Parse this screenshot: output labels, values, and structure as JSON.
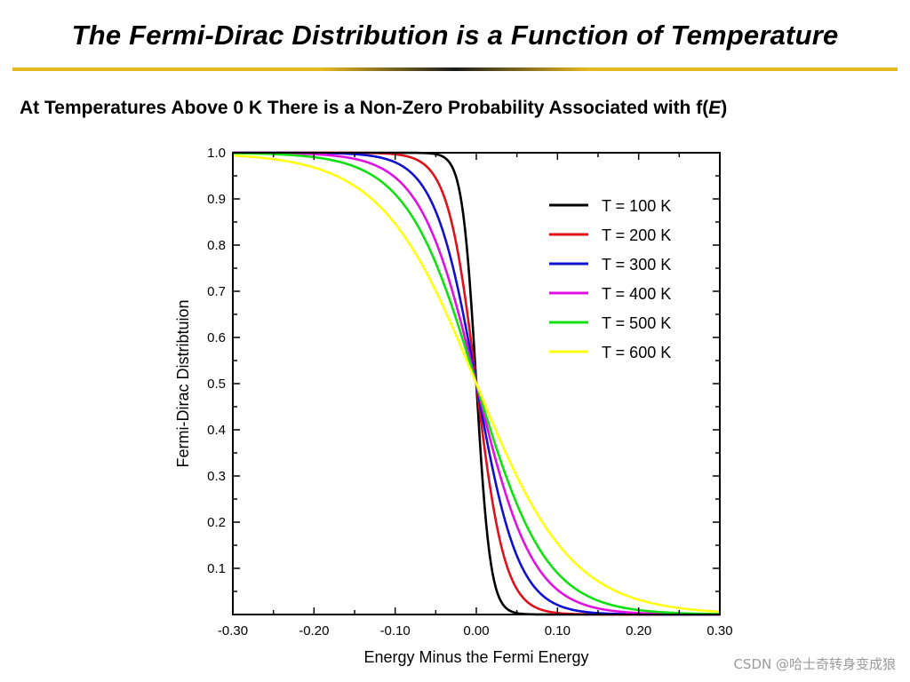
{
  "slide": {
    "title": "The Fermi-Dirac Distribution is a Function of Temperature",
    "subtitle_main": "At Temperatures Above 0 K There is a Non-Zero Probability Associated with f(",
    "subtitle_var": "E",
    "subtitle_end": ")",
    "rule_colors": {
      "gold": "#E8B820",
      "dark": "#1a1a1a"
    },
    "watermark": "CSDN @哈士奇转身变成狼"
  },
  "chart_data": {
    "type": "line",
    "title": "",
    "xlabel": "Energy Minus the Fermi Energy",
    "ylabel": "Fermi-Dirac Distribtuion",
    "xlim": [
      -0.3,
      0.3
    ],
    "ylim": [
      0.0,
      1.0
    ],
    "x_ticks": [
      "-0.30",
      "-0.20",
      "-0.10",
      "0.00",
      "0.10",
      "0.20",
      "0.30"
    ],
    "y_ticks": [
      "0.1",
      "0.2",
      "0.3",
      "0.4",
      "0.5",
      "0.6",
      "0.7",
      "0.8",
      "0.9",
      "1.0"
    ],
    "grid": false,
    "legend_position": "top-right",
    "x": [
      -0.3,
      -0.25,
      -0.2,
      -0.15,
      -0.1,
      -0.05,
      -0.03,
      -0.02,
      -0.01,
      0.0,
      0.01,
      0.02,
      0.03,
      0.05,
      0.1,
      0.15,
      0.2,
      0.25,
      0.3
    ],
    "series": [
      {
        "name": "T = 100 K",
        "color": "#000000",
        "values": [
          1.0,
          1.0,
          1.0,
          1.0,
          1.0,
          0.997,
          0.969,
          0.91,
          0.761,
          0.5,
          0.239,
          0.09,
          0.031,
          0.003,
          0.0,
          0.0,
          0.0,
          0.0,
          0.0
        ]
      },
      {
        "name": "T = 200 K",
        "color": "#E0101A",
        "values": [
          1.0,
          1.0,
          1.0,
          1.0,
          0.997,
          0.945,
          0.85,
          0.761,
          0.64,
          0.5,
          0.36,
          0.239,
          0.15,
          0.055,
          0.003,
          0.0,
          0.0,
          0.0,
          0.0
        ]
      },
      {
        "name": "T = 300 K",
        "color": "#1010D0",
        "values": [
          1.0,
          1.0,
          1.0,
          0.997,
          0.979,
          0.873,
          0.761,
          0.683,
          0.595,
          0.5,
          0.405,
          0.317,
          0.239,
          0.127,
          0.021,
          0.003,
          0.0,
          0.0,
          0.0
        ]
      },
      {
        "name": "T = 400 K",
        "color": "#E010E0",
        "values": [
          1.0,
          1.0,
          0.997,
          0.987,
          0.945,
          0.808,
          0.701,
          0.64,
          0.572,
          0.5,
          0.428,
          0.36,
          0.299,
          0.192,
          0.055,
          0.013,
          0.003,
          0.0,
          0.0
        ]
      },
      {
        "name": "T = 500 K",
        "color": "#10E010",
        "values": [
          1.0,
          0.997,
          0.99,
          0.969,
          0.91,
          0.761,
          0.665,
          0.613,
          0.558,
          0.5,
          0.442,
          0.387,
          0.335,
          0.239,
          0.09,
          0.031,
          0.01,
          0.003,
          0.0
        ]
      },
      {
        "name": "T = 600 K",
        "color": "#FFFF10",
        "values": [
          0.997,
          0.992,
          0.979,
          0.945,
          0.873,
          0.701,
          0.64,
          0.595,
          0.548,
          0.5,
          0.452,
          0.405,
          0.36,
          0.299,
          0.127,
          0.055,
          0.021,
          0.008,
          0.003
        ]
      }
    ]
  }
}
